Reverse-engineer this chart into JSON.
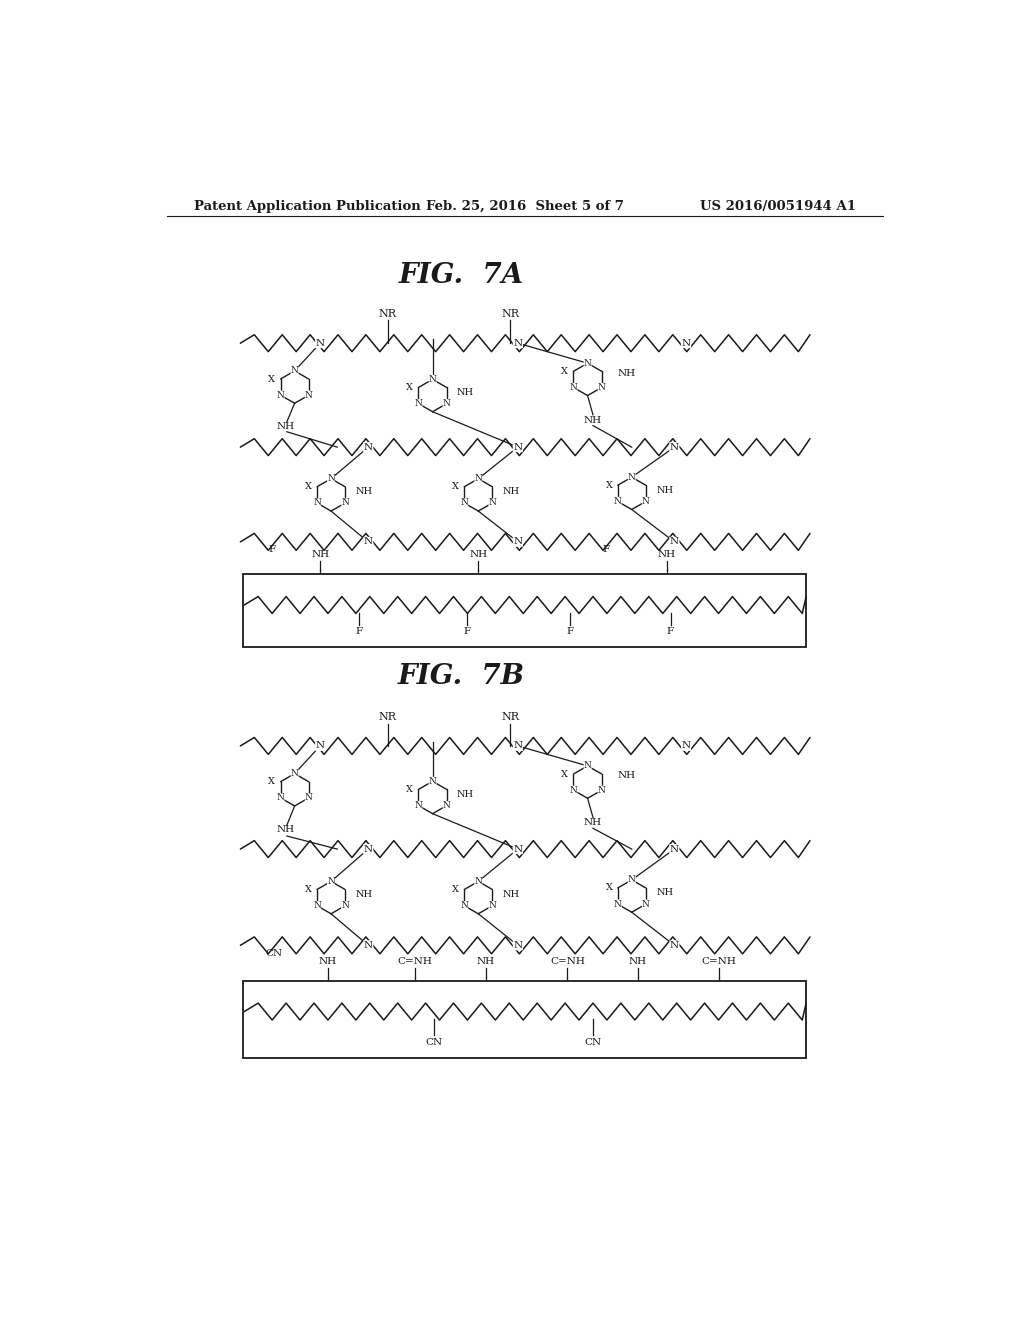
{
  "background_color": "#ffffff",
  "header_left": "Patent Application Publication",
  "header_center": "Feb. 25, 2016  Sheet 5 of 7",
  "header_right": "US 2016/0051944 A1",
  "fig7a_title": "FIG.  7A",
  "fig7b_title": "FIG.  7B",
  "header_fontsize": 9.5,
  "title_fontsize": 20,
  "line_color": "#1a1a1a",
  "text_color": "#1a1a1a"
}
